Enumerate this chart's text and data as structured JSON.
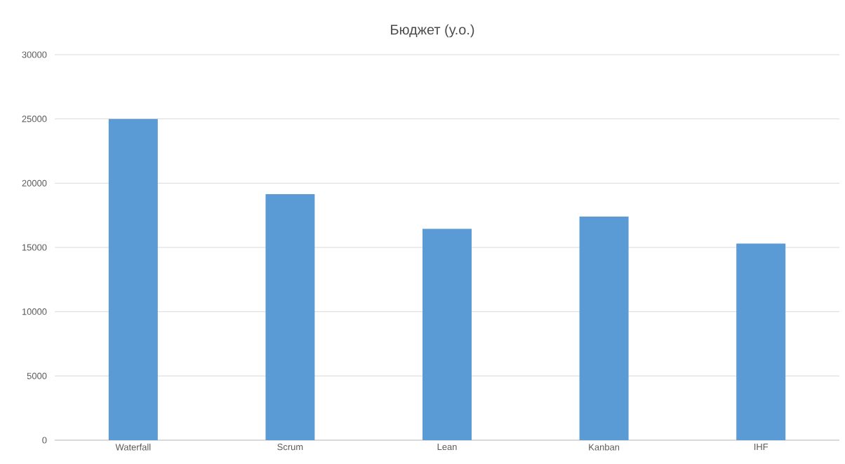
{
  "chart_data": {
    "type": "bar",
    "title": "Бюджет (у.о.)",
    "categories": [
      "Waterfall",
      "Scrum",
      "Lean",
      "Kanban",
      "IHF"
    ],
    "values": [
      25000,
      19150,
      16450,
      17400,
      15300
    ],
    "color": "#5b9bd5",
    "ylim": [
      0,
      30000
    ],
    "yticks": [
      0,
      5000,
      10000,
      15000,
      20000,
      25000,
      30000
    ],
    "grid": "y"
  }
}
